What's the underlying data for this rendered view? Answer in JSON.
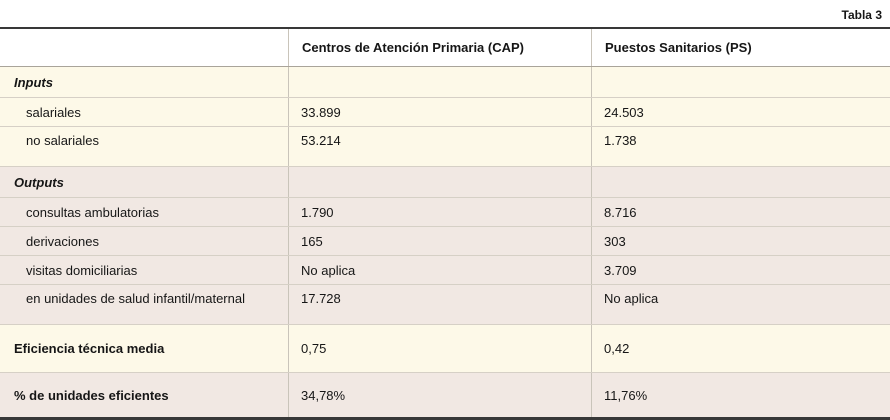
{
  "caption": "Tabla 3",
  "chart_data": {
    "type": "table",
    "title": "Tabla 3",
    "columns": {
      "label": "",
      "cap": "Centros de Atención Primaria (CAP)",
      "ps": "Puestos Sanitarios (PS)"
    },
    "rows": [
      {
        "label": "Inputs",
        "cap": "",
        "ps": "",
        "style": "section",
        "bg": "cream",
        "tall": false
      },
      {
        "label": "salariales",
        "cap": "33.899",
        "ps": "24.503",
        "style": "item",
        "bg": "cream",
        "tall": false
      },
      {
        "label": "no salariales",
        "cap": "53.214",
        "ps": "1.738",
        "style": "item",
        "bg": "cream",
        "tall": true
      },
      {
        "label": "Outputs",
        "cap": "",
        "ps": "",
        "style": "section",
        "bg": "pink",
        "tall": false
      },
      {
        "label": "consultas ambulatorias",
        "cap": "1.790",
        "ps": "8.716",
        "style": "item",
        "bg": "pink",
        "tall": false
      },
      {
        "label": "derivaciones",
        "cap": "165",
        "ps": "303",
        "style": "item",
        "bg": "pink",
        "tall": false
      },
      {
        "label": "visitas domiciliarias",
        "cap": "No aplica",
        "ps": "3.709",
        "style": "item",
        "bg": "pink",
        "tall": false
      },
      {
        "label": "en unidades de salud infantil/maternal",
        "cap": "17.728",
        "ps": "No aplica",
        "style": "item",
        "bg": "pink",
        "tall": true
      },
      {
        "label": "Eficiencia técnica media",
        "cap": "0,75",
        "ps": "0,42",
        "style": "summary",
        "bg": "cream",
        "tall": false
      },
      {
        "label": "% de unidades eficientes",
        "cap": "34,78%",
        "ps": "11,76%",
        "style": "summary",
        "bg": "pink",
        "tall": false
      }
    ],
    "layout_hints": {
      "section_band_colors": {
        "cream": "#fdf9e8",
        "pink": "#f1e8e3"
      },
      "rule_color": "#383838",
      "grid_line_color": "#d6d0c6",
      "column_divider_color": "#c9c4ba",
      "legend": "none",
      "grid": "on"
    }
  }
}
